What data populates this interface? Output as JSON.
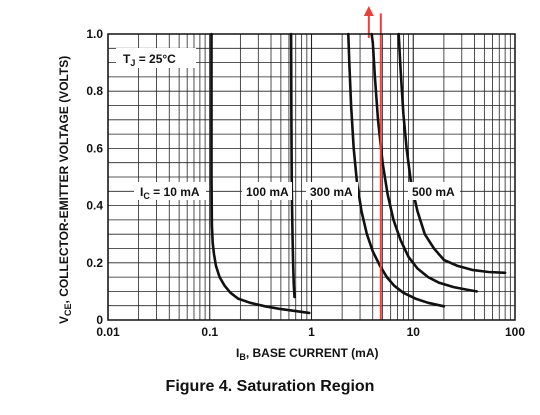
{
  "caption": "Figure 4. Saturation Region",
  "chart_data": {
    "type": "line",
    "x_scale": "log",
    "xlim": [
      0.01,
      100
    ],
    "ylim": [
      0,
      1.0
    ],
    "x_ticks": [
      "0.01",
      "0.1",
      "1",
      "10",
      "100"
    ],
    "y_ticks": [
      "0",
      "0.2",
      "0.4",
      "0.6",
      "0.8",
      "1.0"
    ],
    "xlabel": {
      "main": "I",
      "sub": "B",
      "rest": ", BASE CURRENT (mA)"
    },
    "ylabel": {
      "main": "V",
      "sub": "CE",
      "rest": ", COLLECTOR-EMITTER VOLTAGE (VOLTS)"
    },
    "annotation": {
      "main": "T",
      "sub": "J",
      "rest": " = 25°C"
    },
    "grid": true,
    "colors": {
      "series": "#111111",
      "marker": "#e8403a",
      "grid": "#222222"
    },
    "series": [
      {
        "name": "10 mA",
        "label": {
          "main": "I",
          "sub": "C",
          "rest": " = 10 mA"
        },
        "x": [
          0.104,
          0.104,
          0.105,
          0.107,
          0.11,
          0.115,
          0.125,
          0.14,
          0.16,
          0.19,
          0.25,
          0.35,
          0.5,
          0.7,
          0.95
        ],
        "y": [
          1.0,
          0.5,
          0.33,
          0.27,
          0.23,
          0.19,
          0.15,
          0.12,
          0.095,
          0.075,
          0.06,
          0.048,
          0.038,
          0.031,
          0.025
        ]
      },
      {
        "name": "100 mA",
        "label": {
          "main": "100 mA"
        },
        "x": [
          0.63,
          0.635,
          0.64,
          0.65,
          0.66,
          0.67,
          0.68
        ],
        "y": [
          1.0,
          0.7,
          0.45,
          0.3,
          0.2,
          0.12,
          0.08
        ]
      },
      {
        "name": "300 mA",
        "label": {
          "main": "300 mA"
        },
        "x": [
          2.3,
          2.35,
          2.45,
          2.6,
          2.8,
          3.1,
          3.5,
          4.0,
          4.7,
          5.5,
          6.5,
          8.0,
          10.5,
          14,
          20
        ],
        "y": [
          1.0,
          0.9,
          0.75,
          0.6,
          0.48,
          0.38,
          0.3,
          0.24,
          0.19,
          0.15,
          0.12,
          0.095,
          0.075,
          0.06,
          0.048
        ]
      },
      {
        "name": "500 mA",
        "label": {
          "main": "500 mA"
        },
        "x": [
          3.9,
          4.0,
          4.2,
          4.5,
          5.0,
          5.6,
          6.4,
          7.5,
          9.0,
          11,
          14,
          18,
          25,
          35,
          42
        ],
        "y": [
          1.0,
          0.97,
          0.85,
          0.7,
          0.55,
          0.44,
          0.35,
          0.28,
          0.22,
          0.18,
          0.15,
          0.13,
          0.115,
          0.105,
          0.1
        ]
      },
      {
        "name": "",
        "label": {
          "main": ""
        },
        "x": [
          7.2,
          7.5,
          8.0,
          8.6,
          9.5,
          11,
          13,
          16,
          20,
          27,
          38,
          55,
          80
        ],
        "y": [
          1.0,
          0.88,
          0.72,
          0.6,
          0.48,
          0.38,
          0.3,
          0.25,
          0.21,
          0.19,
          0.175,
          0.168,
          0.165
        ]
      }
    ],
    "marker_line": {
      "x": 4.8,
      "y_top": 1.1
    }
  }
}
